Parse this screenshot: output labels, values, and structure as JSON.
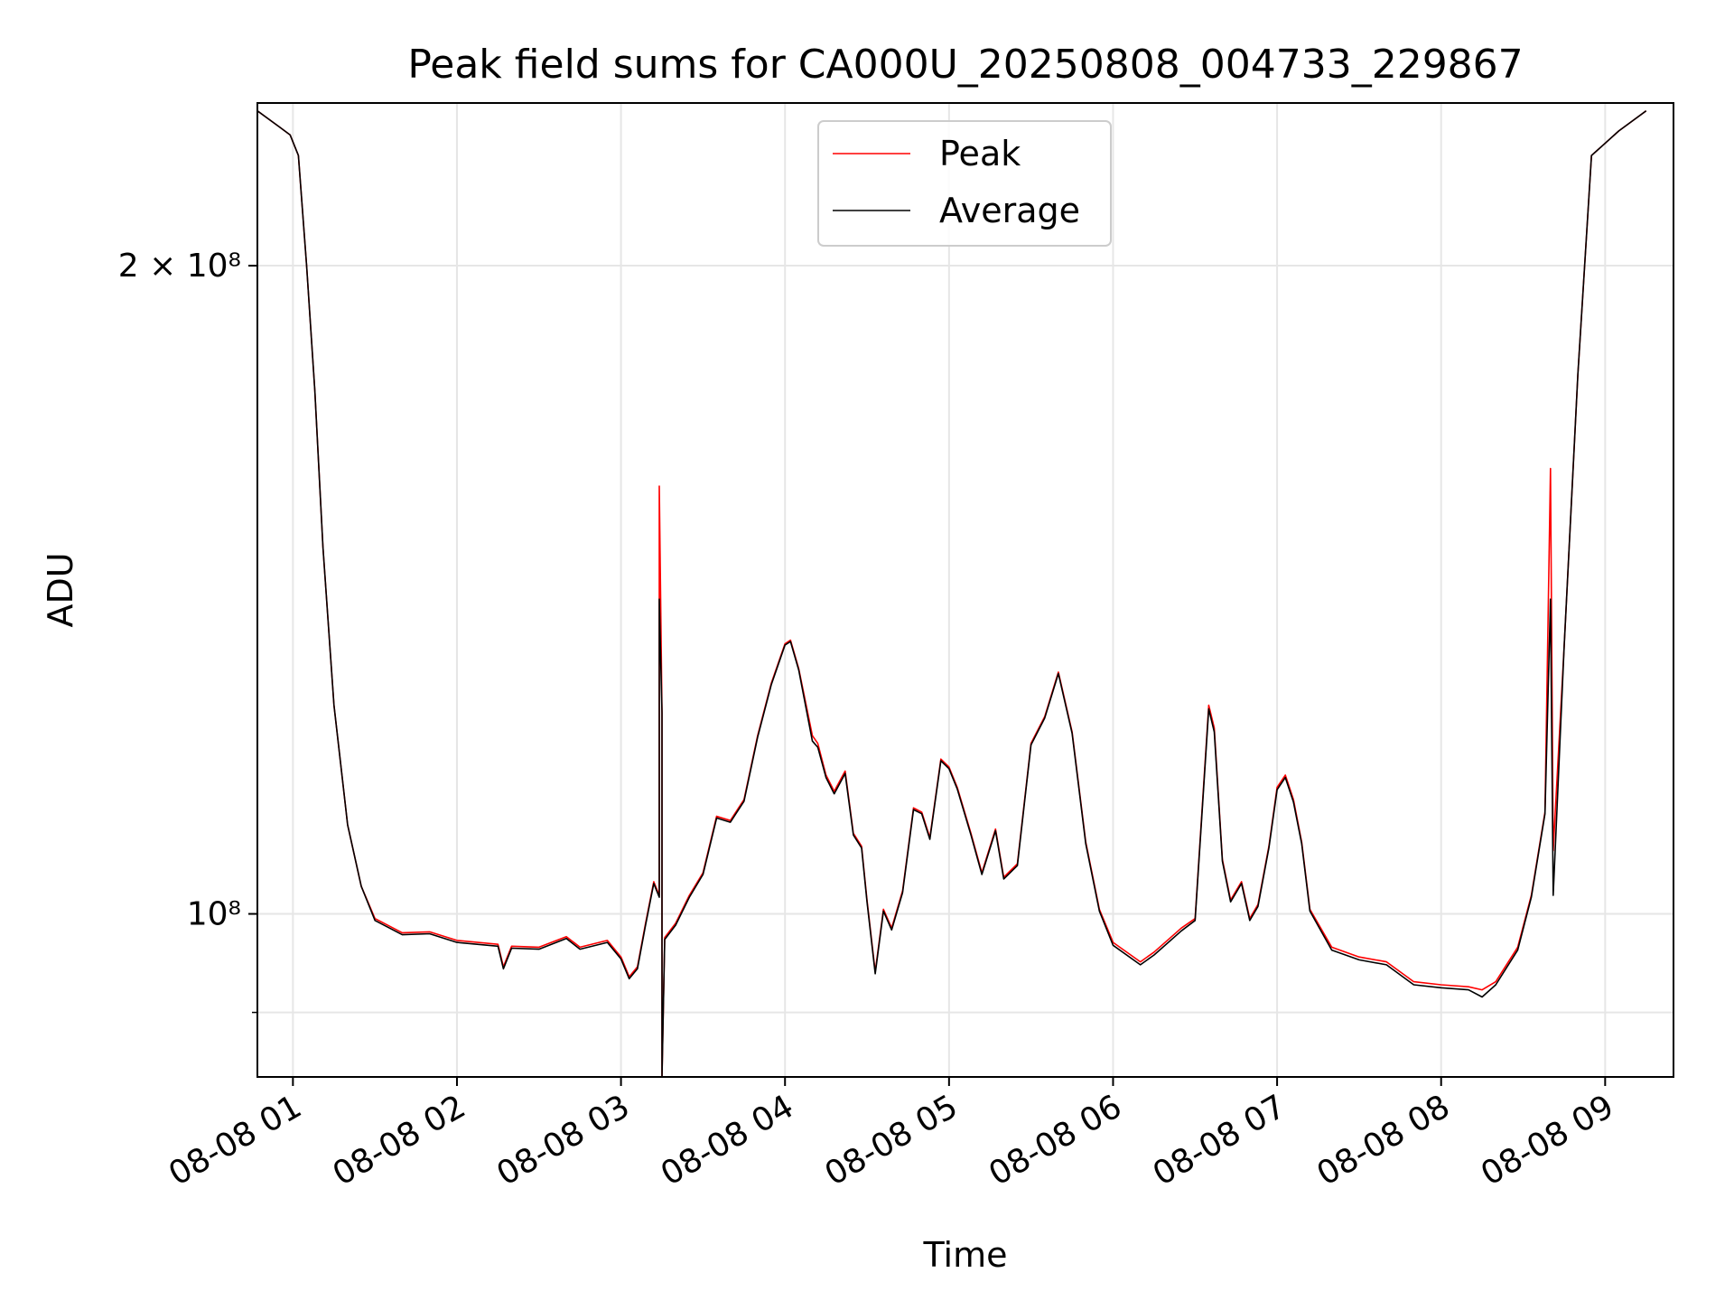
{
  "chart_data": {
    "type": "line",
    "title": "Peak field sums for CA000U_20250808_004733_229867",
    "xlabel": "Time",
    "ylabel": "ADU",
    "x_is_time": true,
    "xlim": [
      "08-08 00:47",
      "08-08 09:25"
    ],
    "ylim": [
      84000000,
      238000000
    ],
    "yscale": "log",
    "grid": true,
    "legend_position": "upper center",
    "x_ticks": [
      {
        "t": "08-08 01:00",
        "label": "08-08 01"
      },
      {
        "t": "08-08 02:00",
        "label": "08-08 02"
      },
      {
        "t": "08-08 03:00",
        "label": "08-08 03"
      },
      {
        "t": "08-08 04:00",
        "label": "08-08 04"
      },
      {
        "t": "08-08 05:00",
        "label": "08-08 05"
      },
      {
        "t": "08-08 06:00",
        "label": "08-08 06"
      },
      {
        "t": "08-08 07:00",
        "label": "08-08 07"
      },
      {
        "t": "08-08 08:00",
        "label": "08-08 08"
      },
      {
        "t": "08-08 09:00",
        "label": "08-08 09"
      }
    ],
    "y_ticks": [
      {
        "value": 200000000,
        "label": "2 × 10⁸"
      },
      {
        "value": 100000000,
        "label": "10⁸"
      }
    ],
    "y_minor_ticks": [
      90000000
    ],
    "series": [
      {
        "name": "Peak",
        "color": "#ff0000",
        "points": [
          [
            "08-08 00:47",
            236000000
          ],
          [
            "08-08 00:55",
            232000000
          ],
          [
            "08-08 00:59",
            230000000
          ],
          [
            "08-08 01:02",
            225000000
          ],
          [
            "08-08 01:05",
            200000000
          ],
          [
            "08-08 01:08",
            175000000
          ],
          [
            "08-08 01:11",
            148000000
          ],
          [
            "08-08 01:15",
            125000000
          ],
          [
            "08-08 01:20",
            110000000
          ],
          [
            "08-08 01:25",
            103000000
          ],
          [
            "08-08 01:30",
            99500000
          ],
          [
            "08-08 01:40",
            98000000
          ],
          [
            "08-08 01:50",
            98100000
          ],
          [
            "08-08 02:00",
            97200000
          ],
          [
            "08-08 02:15",
            96800000
          ],
          [
            "08-08 02:17",
            94500000
          ],
          [
            "08-08 02:20",
            96600000
          ],
          [
            "08-08 02:30",
            96500000
          ],
          [
            "08-08 02:40",
            97600000
          ],
          [
            "08-08 02:45",
            96500000
          ],
          [
            "08-08 02:55",
            97200000
          ],
          [
            "08-08 03:00",
            95500000
          ],
          [
            "08-08 03:03",
            93500000
          ],
          [
            "08-08 03:06",
            94500000
          ],
          [
            "08-08 03:09",
            99000000
          ],
          [
            "08-08 03:12",
            103500000
          ],
          [
            "08-08 03:14",
            102000000
          ],
          [
            "08-08 03:14",
            158000000
          ],
          [
            "08-08 03:15",
            124000000
          ],
          [
            "08-08 03:15",
            83000000
          ],
          [
            "08-08 03:16",
            97500000
          ],
          [
            "08-08 03:20",
            99000000
          ],
          [
            "08-08 03:25",
            102000000
          ],
          [
            "08-08 03:30",
            104500000
          ],
          [
            "08-08 03:35",
            111000000
          ],
          [
            "08-08 03:40",
            110500000
          ],
          [
            "08-08 03:45",
            113000000
          ],
          [
            "08-08 03:50",
            121000000
          ],
          [
            "08-08 03:55",
            128000000
          ],
          [
            "08-08 04:00",
            133500000
          ],
          [
            "08-08 04:02",
            134000000
          ],
          [
            "08-08 04:05",
            130000000
          ],
          [
            "08-08 04:10",
            121000000
          ],
          [
            "08-08 04:12",
            120000000
          ],
          [
            "08-08 04:15",
            116000000
          ],
          [
            "08-08 04:18",
            114000000
          ],
          [
            "08-08 04:22",
            116500000
          ],
          [
            "08-08 04:25",
            109000000
          ],
          [
            "08-08 04:28",
            107500000
          ],
          [
            "08-08 04:30",
            101500000
          ],
          [
            "08-08 04:33",
            94000000
          ],
          [
            "08-08 04:36",
            100500000
          ],
          [
            "08-08 04:39",
            98500000
          ],
          [
            "08-08 04:43",
            102500000
          ],
          [
            "08-08 04:47",
            112000000
          ],
          [
            "08-08 04:50",
            111500000
          ],
          [
            "08-08 04:53",
            108500000
          ],
          [
            "08-08 04:57",
            118000000
          ],
          [
            "08-08 05:00",
            117000000
          ],
          [
            "08-08 05:03",
            114500000
          ],
          [
            "08-08 05:08",
            109000000
          ],
          [
            "08-08 05:12",
            104500000
          ],
          [
            "08-08 05:17",
            109500000
          ],
          [
            "08-08 05:20",
            104000000
          ],
          [
            "08-08 05:25",
            105500000
          ],
          [
            "08-08 05:30",
            120000000
          ],
          [
            "08-08 05:35",
            123500000
          ],
          [
            "08-08 05:40",
            129500000
          ],
          [
            "08-08 05:45",
            121500000
          ],
          [
            "08-08 05:50",
            108000000
          ],
          [
            "08-08 05:55",
            100500000
          ],
          [
            "08-08 06:00",
            97000000
          ],
          [
            "08-08 06:10",
            95000000
          ],
          [
            "08-08 06:15",
            96000000
          ],
          [
            "08-08 06:25",
            98500000
          ],
          [
            "08-08 06:30",
            99500000
          ],
          [
            "08-08 06:35",
            125000000
          ],
          [
            "08-08 06:37",
            122000000
          ],
          [
            "08-08 06:40",
            106000000
          ],
          [
            "08-08 06:43",
            101500000
          ],
          [
            "08-08 06:47",
            103500000
          ],
          [
            "08-08 06:50",
            99500000
          ],
          [
            "08-08 06:53",
            101000000
          ],
          [
            "08-08 06:57",
            107500000
          ],
          [
            "08-08 07:00",
            114500000
          ],
          [
            "08-08 07:03",
            116000000
          ],
          [
            "08-08 07:06",
            113000000
          ],
          [
            "08-08 07:09",
            108000000
          ],
          [
            "08-08 07:12",
            100500000
          ],
          [
            "08-08 07:20",
            96500000
          ],
          [
            "08-08 07:30",
            95500000
          ],
          [
            "08-08 07:40",
            95000000
          ],
          [
            "08-08 07:50",
            93000000
          ],
          [
            "08-08 08:00",
            92700000
          ],
          [
            "08-08 08:10",
            92500000
          ],
          [
            "08-08 08:15",
            92200000
          ],
          [
            "08-08 08:20",
            93000000
          ],
          [
            "08-08 08:28",
            96500000
          ],
          [
            "08-08 08:33",
            102000000
          ],
          [
            "08-08 08:38",
            111500000
          ],
          [
            "08-08 08:40",
            161000000
          ],
          [
            "08-08 08:41",
            107000000
          ],
          [
            "08-08 08:45",
            133000000
          ],
          [
            "08-08 08:50",
            178000000
          ],
          [
            "08-08 08:55",
            225000000
          ],
          [
            "08-08 09:05",
            231000000
          ],
          [
            "08-08 09:15",
            236000000
          ]
        ]
      },
      {
        "name": "Average",
        "color": "#000000",
        "points": [
          [
            "08-08 00:47",
            236000000
          ],
          [
            "08-08 00:55",
            232000000
          ],
          [
            "08-08 00:59",
            230000000
          ],
          [
            "08-08 01:02",
            225000000
          ],
          [
            "08-08 01:05",
            200000000
          ],
          [
            "08-08 01:08",
            175000000
          ],
          [
            "08-08 01:11",
            148000000
          ],
          [
            "08-08 01:15",
            125000000
          ],
          [
            "08-08 01:20",
            110000000
          ],
          [
            "08-08 01:25",
            103000000
          ],
          [
            "08-08 01:30",
            99300000
          ],
          [
            "08-08 01:40",
            97800000
          ],
          [
            "08-08 01:50",
            97900000
          ],
          [
            "08-08 02:00",
            97000000
          ],
          [
            "08-08 02:15",
            96600000
          ],
          [
            "08-08 02:17",
            94300000
          ],
          [
            "08-08 02:20",
            96400000
          ],
          [
            "08-08 02:30",
            96300000
          ],
          [
            "08-08 02:40",
            97400000
          ],
          [
            "08-08 02:45",
            96300000
          ],
          [
            "08-08 02:55",
            97000000
          ],
          [
            "08-08 03:00",
            95300000
          ],
          [
            "08-08 03:03",
            93300000
          ],
          [
            "08-08 03:06",
            94300000
          ],
          [
            "08-08 03:09",
            98800000
          ],
          [
            "08-08 03:12",
            103300000
          ],
          [
            "08-08 03:14",
            101800000
          ],
          [
            "08-08 03:14",
            140000000
          ],
          [
            "08-08 03:15",
            124000000
          ],
          [
            "08-08 03:15",
            83000000
          ],
          [
            "08-08 03:16",
            97300000
          ],
          [
            "08-08 03:20",
            98800000
          ],
          [
            "08-08 03:25",
            101800000
          ],
          [
            "08-08 03:30",
            104300000
          ],
          [
            "08-08 03:35",
            110800000
          ],
          [
            "08-08 03:40",
            110300000
          ],
          [
            "08-08 03:45",
            112800000
          ],
          [
            "08-08 03:50",
            120800000
          ],
          [
            "08-08 03:55",
            127800000
          ],
          [
            "08-08 04:00",
            133300000
          ],
          [
            "08-08 04:02",
            133800000
          ],
          [
            "08-08 04:05",
            129800000
          ],
          [
            "08-08 04:10",
            120300000
          ],
          [
            "08-08 04:12",
            119500000
          ],
          [
            "08-08 04:15",
            115700000
          ],
          [
            "08-08 04:18",
            113700000
          ],
          [
            "08-08 04:22",
            116200000
          ],
          [
            "08-08 04:25",
            108800000
          ],
          [
            "08-08 04:28",
            107300000
          ],
          [
            "08-08 04:30",
            101300000
          ],
          [
            "08-08 04:33",
            93800000
          ],
          [
            "08-08 04:36",
            100300000
          ],
          [
            "08-08 04:39",
            98300000
          ],
          [
            "08-08 04:43",
            102300000
          ],
          [
            "08-08 04:47",
            111800000
          ],
          [
            "08-08 04:50",
            111300000
          ],
          [
            "08-08 04:53",
            108300000
          ],
          [
            "08-08 04:57",
            117800000
          ],
          [
            "08-08 05:00",
            116800000
          ],
          [
            "08-08 05:03",
            114300000
          ],
          [
            "08-08 05:08",
            108800000
          ],
          [
            "08-08 05:12",
            104300000
          ],
          [
            "08-08 05:17",
            109300000
          ],
          [
            "08-08 05:20",
            103800000
          ],
          [
            "08-08 05:25",
            105300000
          ],
          [
            "08-08 05:30",
            119800000
          ],
          [
            "08-08 05:35",
            123300000
          ],
          [
            "08-08 05:40",
            129300000
          ],
          [
            "08-08 05:45",
            121300000
          ],
          [
            "08-08 05:50",
            107800000
          ],
          [
            "08-08 05:55",
            100300000
          ],
          [
            "08-08 06:00",
            96700000
          ],
          [
            "08-08 06:10",
            94700000
          ],
          [
            "08-08 06:15",
            95700000
          ],
          [
            "08-08 06:25",
            98200000
          ],
          [
            "08-08 06:30",
            99300000
          ],
          [
            "08-08 06:35",
            124500000
          ],
          [
            "08-08 06:37",
            121500000
          ],
          [
            "08-08 06:40",
            105800000
          ],
          [
            "08-08 06:43",
            101300000
          ],
          [
            "08-08 06:47",
            103300000
          ],
          [
            "08-08 06:50",
            99300000
          ],
          [
            "08-08 06:53",
            100800000
          ],
          [
            "08-08 06:57",
            107300000
          ],
          [
            "08-08 07:00",
            114200000
          ],
          [
            "08-08 07:03",
            115700000
          ],
          [
            "08-08 07:06",
            112700000
          ],
          [
            "08-08 07:09",
            107800000
          ],
          [
            "08-08 07:12",
            100300000
          ],
          [
            "08-08 07:20",
            96200000
          ],
          [
            "08-08 07:30",
            95200000
          ],
          [
            "08-08 07:40",
            94700000
          ],
          [
            "08-08 07:50",
            92700000
          ],
          [
            "08-08 08:00",
            92400000
          ],
          [
            "08-08 08:10",
            92200000
          ],
          [
            "08-08 08:15",
            91500000
          ],
          [
            "08-08 08:20",
            92700000
          ],
          [
            "08-08 08:28",
            96200000
          ],
          [
            "08-08 08:33",
            101800000
          ],
          [
            "08-08 08:38",
            111300000
          ],
          [
            "08-08 08:40",
            140000000
          ],
          [
            "08-08 08:41",
            102000000
          ],
          [
            "08-08 08:45",
            133000000
          ],
          [
            "08-08 08:50",
            178000000
          ],
          [
            "08-08 08:55",
            225000000
          ],
          [
            "08-08 09:05",
            231000000
          ],
          [
            "08-08 09:15",
            236000000
          ]
        ]
      }
    ]
  }
}
